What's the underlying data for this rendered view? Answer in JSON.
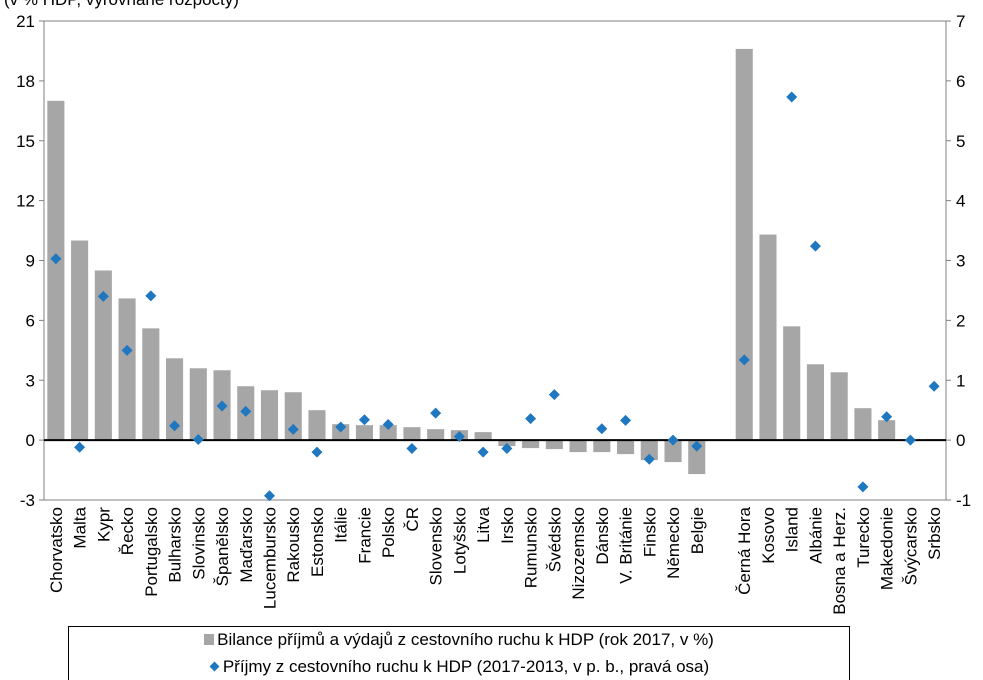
{
  "top_text": "(v % HDP, vyrovnané rozpočty)",
  "colors": {
    "bars": "#a6a6a6",
    "markers": "#1f77c0",
    "axis": "#000000",
    "frame": "#808080"
  },
  "chart_data": {
    "type": "bar",
    "categories": [
      "Chorvatsko",
      "Malta",
      "Kypr",
      "Řecko",
      "Portugalsko",
      "Bulharsko",
      "Slovinsko",
      "Španělsko",
      "Maďarsko",
      "Lucembursko",
      "Rakousko",
      "Estonsko",
      "Itálie",
      "Francie",
      "Polsko",
      "ČR",
      "Slovensko",
      "Lotyšsko",
      "Litva",
      "Irsko",
      "Rumunsko",
      "Švédsko",
      "Nizozemsko",
      "Dánsko",
      "V. Británie",
      "Finsko",
      "Německo",
      "Belgie",
      "",
      "Černá Hora",
      "Kosovo",
      "Island",
      "Albánie",
      "Bosna a Herz.",
      "Turecko",
      "Makedonie",
      "Švýcarsko",
      "Srbsko"
    ],
    "series": [
      {
        "name": "Bilance příjmů a výdajů z cestovního ruchu k HDP (rok 2017, v %)",
        "type": "bar",
        "axis": "left",
        "values": [
          17.0,
          10.0,
          8.5,
          7.1,
          5.6,
          4.1,
          3.6,
          3.5,
          2.7,
          2.5,
          2.4,
          1.5,
          0.8,
          0.75,
          0.75,
          0.65,
          0.55,
          0.5,
          0.4,
          -0.3,
          -0.4,
          -0.45,
          -0.6,
          -0.6,
          -0.7,
          -1.0,
          -1.1,
          -1.7,
          null,
          19.6,
          10.3,
          5.7,
          3.8,
          3.4,
          1.6,
          1.0,
          -0.05,
          0.05
        ]
      },
      {
        "name": "Příjmy z cestovního ruchu k HDP (2017-2013, v p. b., pravá osa)",
        "type": "scatter",
        "axis": "right",
        "values": [
          3.03,
          -0.12,
          2.4,
          1.5,
          2.41,
          0.24,
          0.01,
          0.57,
          0.48,
          -0.93,
          0.18,
          -0.2,
          0.22,
          0.34,
          0.26,
          -0.14,
          0.45,
          0.06,
          -0.2,
          -0.14,
          0.36,
          0.76,
          null,
          0.19,
          0.33,
          -0.32,
          0.0,
          -0.1,
          null,
          1.34,
          null,
          5.73,
          3.24,
          null,
          -0.78,
          0.39,
          0.0,
          0.9
        ]
      }
    ],
    "y_left": {
      "min": -3,
      "max": 21,
      "ticks": [
        "-3",
        "0",
        "3",
        "6",
        "9",
        "12",
        "15",
        "18",
        "21"
      ]
    },
    "y_right": {
      "min": -1,
      "max": 7,
      "ticks": [
        "-1",
        "0",
        "1",
        "2",
        "3",
        "4",
        "5",
        "6",
        "7"
      ]
    },
    "legend": {
      "position": "bottom",
      "bar_label": "Bilance příjmů a výdajů z cestovního ruchu k HDP (rok 2017, v %)",
      "marker_label": "Příjmy z cestovního ruchu k HDP (2017-2013, v p. b., pravá osa)"
    },
    "grid": false
  }
}
